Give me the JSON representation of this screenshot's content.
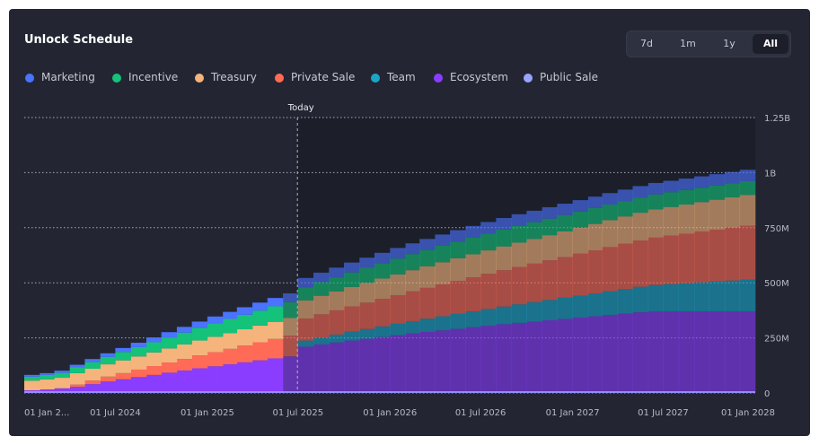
{
  "card": {
    "title": "Unlock Schedule"
  },
  "range_buttons": [
    "7d",
    "1m",
    "1y",
    "All"
  ],
  "active_range": "All",
  "colors": {
    "background": "#232632",
    "future_overlay": "#1c1f29",
    "Marketing": "#4a73ff",
    "Incentive": "#15c27a",
    "Treasury": "#f5b47c",
    "Private Sale": "#ff6b57",
    "Team": "#1ba6c9",
    "Ecosystem": "#8a3dff",
    "Public Sale": "#9aa4ff"
  },
  "chart_data": {
    "type": "area",
    "title": "Unlock Schedule",
    "style": "stepped stacked area",
    "x_tick_labels": [
      "01 Jan 2...",
      "01 Jul 2024",
      "01 Jan 2025",
      "01 Jul 2025",
      "01 Jan 2026",
      "01 Jul 2026",
      "01 Jan 2027",
      "01 Jul 2027",
      "01 Jan 2028"
    ],
    "y_tick_labels": [
      "0",
      "250M",
      "500M",
      "750M",
      "1B",
      "1.25B"
    ],
    "ylim": [
      0,
      1250000000
    ],
    "grid": true,
    "legend_position": "top-left",
    "today": {
      "label": "Today",
      "date": "2025-06-30"
    },
    "months": [
      "2024-01",
      "2024-02",
      "2024-03",
      "2024-04",
      "2024-05",
      "2024-06",
      "2024-07",
      "2024-08",
      "2024-09",
      "2024-10",
      "2024-11",
      "2024-12",
      "2025-01",
      "2025-02",
      "2025-03",
      "2025-04",
      "2025-05",
      "2025-06",
      "2025-07",
      "2025-08",
      "2025-09",
      "2025-10",
      "2025-11",
      "2025-12",
      "2026-01",
      "2026-02",
      "2026-03",
      "2026-04",
      "2026-05",
      "2026-06",
      "2026-07",
      "2026-08",
      "2026-09",
      "2026-10",
      "2026-11",
      "2026-12",
      "2027-01",
      "2027-02",
      "2027-03",
      "2027-04",
      "2027-05",
      "2027-06",
      "2027-07",
      "2027-08",
      "2027-09",
      "2027-10",
      "2027-11",
      "2027-12"
    ],
    "series_unit": "millions of tokens",
    "series": [
      {
        "name": "Ecosystem",
        "values": [
          12,
          16,
          21,
          28,
          40,
          52,
          62,
          72,
          82,
          92,
          102,
          112,
          121,
          130,
          139,
          148,
          157,
          166,
          210,
          220,
          229,
          238,
          246,
          254,
          262,
          270,
          277,
          284,
          291,
          298,
          305,
          312,
          318,
          324,
          330,
          336,
          342,
          348,
          354,
          360,
          366,
          370,
          370,
          370,
          370,
          370,
          370,
          370
        ]
      },
      {
        "name": "Team",
        "values": [
          0,
          0,
          0,
          0,
          0,
          0,
          0,
          0,
          0,
          0,
          0,
          0,
          0,
          0,
          0,
          0,
          0,
          0,
          28,
          32,
          36,
          40,
          44,
          48,
          52,
          56,
          60,
          64,
          68,
          72,
          76,
          80,
          84,
          88,
          92,
          96,
          100,
          104,
          108,
          112,
          116,
          120,
          124,
          128,
          132,
          136,
          140,
          144
        ]
      },
      {
        "name": "Private Sale",
        "values": [
          0,
          0,
          0,
          10,
          16,
          22,
          28,
          34,
          40,
          46,
          52,
          58,
          64,
          70,
          76,
          82,
          88,
          94,
          100,
          105,
          110,
          115,
          120,
          125,
          130,
          135,
          140,
          145,
          150,
          155,
          160,
          165,
          170,
          175,
          180,
          185,
          190,
          195,
          200,
          205,
          210,
          215,
          220,
          225,
          230,
          235,
          240,
          245
        ]
      },
      {
        "name": "Treasury",
        "values": [
          44,
          46,
          48,
          52,
          54,
          56,
          58,
          60,
          62,
          64,
          66,
          68,
          70,
          72,
          74,
          76,
          78,
          80,
          82,
          84,
          86,
          88,
          90,
          92,
          94,
          96,
          98,
          100,
          102,
          104,
          106,
          108,
          110,
          112,
          114,
          116,
          118,
          120,
          122,
          124,
          126,
          128,
          130,
          132,
          134,
          136,
          138,
          140
        ]
      },
      {
        "name": "Incentive",
        "values": [
          18,
          20,
          22,
          26,
          30,
          34,
          38,
          42,
          46,
          50,
          54,
          58,
          62,
          64,
          66,
          68,
          70,
          72,
          60,
          62,
          64,
          66,
          68,
          70,
          72,
          73,
          74,
          75,
          76,
          77,
          77,
          77,
          77,
          76,
          75,
          74,
          73,
          72,
          71,
          70,
          69,
          68,
          67,
          66,
          65,
          64,
          63,
          62
        ]
      },
      {
        "name": "Marketing",
        "values": [
          8,
          8,
          10,
          12,
          14,
          16,
          18,
          20,
          22,
          24,
          26,
          28,
          30,
          32,
          34,
          36,
          38,
          40,
          42,
          43,
          44,
          45,
          46,
          47,
          48,
          49,
          50,
          51,
          52,
          52,
          52,
          52,
          52,
          52,
          52,
          52,
          52,
          52,
          52,
          52,
          52,
          52,
          52,
          52,
          52,
          52,
          52,
          52
        ]
      },
      {
        "name": "Public Sale",
        "values": [
          0,
          0,
          0,
          0,
          0,
          0,
          0,
          0,
          0,
          0,
          0,
          0,
          0,
          0,
          0,
          0,
          0,
          0,
          0,
          0,
          0,
          0,
          0,
          0,
          0,
          0,
          0,
          0,
          0,
          0,
          0,
          0,
          0,
          0,
          0,
          0,
          0,
          0,
          0,
          0,
          0,
          0,
          0,
          0,
          0,
          0,
          0,
          0
        ]
      }
    ],
    "legend_order": [
      "Marketing",
      "Incentive",
      "Treasury",
      "Private Sale",
      "Team",
      "Ecosystem",
      "Public Sale"
    ]
  }
}
